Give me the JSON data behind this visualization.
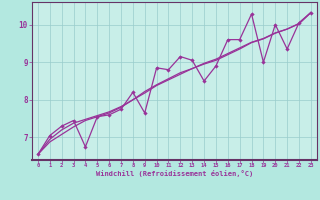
{
  "xlabel": "Windchill (Refroidissement éolien,°C)",
  "bg_color": "#b3e8e0",
  "plot_bg_color": "#c8eee8",
  "grid_color": "#99cccc",
  "line_color": "#993399",
  "axis_color": "#663366",
  "xlim": [
    -0.5,
    23.5
  ],
  "ylim": [
    6.4,
    10.6
  ],
  "xticks": [
    0,
    1,
    2,
    3,
    4,
    5,
    6,
    7,
    8,
    9,
    10,
    11,
    12,
    13,
    14,
    15,
    16,
    17,
    18,
    19,
    20,
    21,
    22,
    23
  ],
  "yticks": [
    7,
    8,
    9,
    10
  ],
  "series1_x": [
    0,
    1,
    2,
    3,
    4,
    5,
    6,
    7,
    8,
    9,
    10,
    11,
    12,
    13,
    14,
    15,
    16,
    17,
    18,
    19,
    20,
    21,
    22,
    23
  ],
  "series1_y": [
    6.55,
    7.05,
    7.3,
    7.45,
    6.75,
    7.55,
    7.6,
    7.75,
    8.2,
    7.65,
    8.85,
    8.8,
    9.15,
    9.05,
    8.5,
    8.9,
    9.6,
    9.6,
    10.28,
    9.0,
    10.0,
    9.35,
    10.05,
    10.32
  ],
  "series2_x": [
    0,
    1,
    2,
    3,
    4,
    5,
    6,
    7,
    8,
    9,
    10,
    11,
    12,
    13,
    14,
    15,
    16,
    17,
    18,
    19,
    20,
    21,
    22,
    23
  ],
  "series2_y": [
    6.55,
    6.95,
    7.2,
    7.38,
    7.48,
    7.58,
    7.68,
    7.82,
    8.0,
    8.18,
    8.38,
    8.53,
    8.68,
    8.83,
    8.95,
    9.05,
    9.2,
    9.35,
    9.52,
    9.62,
    9.77,
    9.88,
    10.02,
    10.32
  ],
  "series3_x": [
    0,
    1,
    2,
    3,
    4,
    5,
    6,
    7,
    8,
    9,
    10,
    11,
    12,
    13,
    14,
    15,
    16,
    17,
    18,
    19,
    20,
    21,
    22,
    23
  ],
  "series3_y": [
    6.55,
    6.88,
    7.08,
    7.28,
    7.45,
    7.55,
    7.65,
    7.8,
    8.0,
    8.22,
    8.4,
    8.56,
    8.72,
    8.83,
    8.97,
    9.08,
    9.23,
    9.38,
    9.53,
    9.63,
    9.78,
    9.88,
    10.03,
    10.32
  ]
}
